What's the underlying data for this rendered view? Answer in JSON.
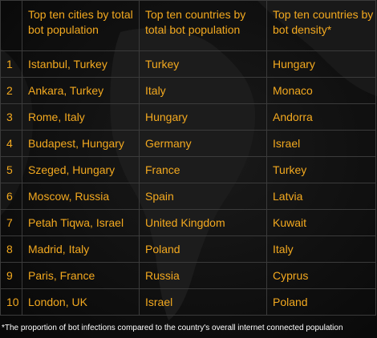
{
  "table": {
    "headers": [
      "",
      "Top ten cities by total bot population",
      "Top ten countries by total bot population",
      "Top ten countries by bot density*"
    ],
    "rows": [
      {
        "rank": "1",
        "city": "Istanbul, Turkey",
        "country": "Turkey",
        "density": "Hungary"
      },
      {
        "rank": "2",
        "city": "Ankara, Turkey",
        "country": "Italy",
        "density": "Monaco"
      },
      {
        "rank": "3",
        "city": "Rome, Italy",
        "country": "Hungary",
        "density": "Andorra"
      },
      {
        "rank": "4",
        "city": "Budapest, Hungary",
        "country": "Germany",
        "density": "Israel"
      },
      {
        "rank": "5",
        "city": "Szeged, Hungary",
        "country": "France",
        "density": "Turkey"
      },
      {
        "rank": "6",
        "city": "Moscow, Russia",
        "country": "Spain",
        "density": "Latvia"
      },
      {
        "rank": "7",
        "city": "Petah Tiqwa, Israel",
        "country": "United Kingdom",
        "density": "Kuwait"
      },
      {
        "rank": "8",
        "city": "Madrid, Italy",
        "country": "Poland",
        "density": "Italy"
      },
      {
        "rank": "9",
        "city": "Paris, France",
        "country": "Russia",
        "density": "Cyprus"
      },
      {
        "rank": "10",
        "city": "London, UK",
        "country": "Israel",
        "density": "Poland"
      }
    ]
  },
  "footnote": "*The proportion of bot infections compared to the country's overall internet connected population",
  "colors": {
    "accent_text": "#f3a91f",
    "background": "#0c0c0c",
    "grid_line": "#3b3b3b",
    "map_shape": "#1d1d1d",
    "footnote_text": "#ffffff"
  }
}
